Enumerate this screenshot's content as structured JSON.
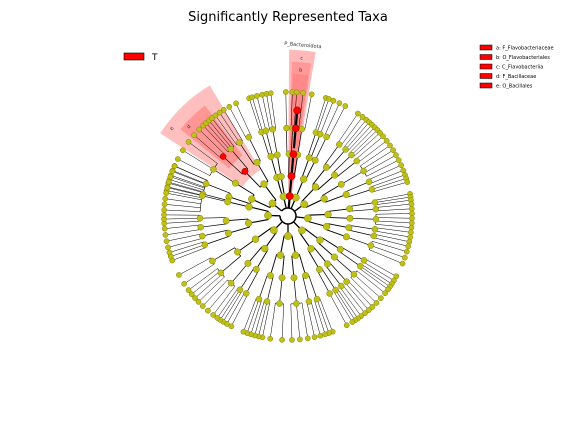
{
  "title": "Significantly Represented Taxa",
  "colors": {
    "background": "#ffffff",
    "node_default": "#c0c01a",
    "node_default_stroke": "#808000",
    "highlight": "#ff0000",
    "highlight_shade": "#ff8080",
    "edge": "#000000"
  },
  "class_legend": {
    "label": "T",
    "color": "#ff0000"
  },
  "clade_legend": [
    {
      "letter": "a",
      "text": "a: F_Flavobacteriaceae"
    },
    {
      "letter": "b",
      "text": "b: O_Flavobacteriales"
    },
    {
      "letter": "c",
      "text": "c: C_Flavobacteriia"
    },
    {
      "letter": "d",
      "text": "d: F_Bacillaceae"
    },
    {
      "letter": "e",
      "text": "e: O_Bacillales"
    }
  ],
  "clade_labels": {
    "phylum": "P_Bacteroidota",
    "c": "c",
    "b": "b",
    "a": "a",
    "e": "e",
    "d": "d"
  }
}
